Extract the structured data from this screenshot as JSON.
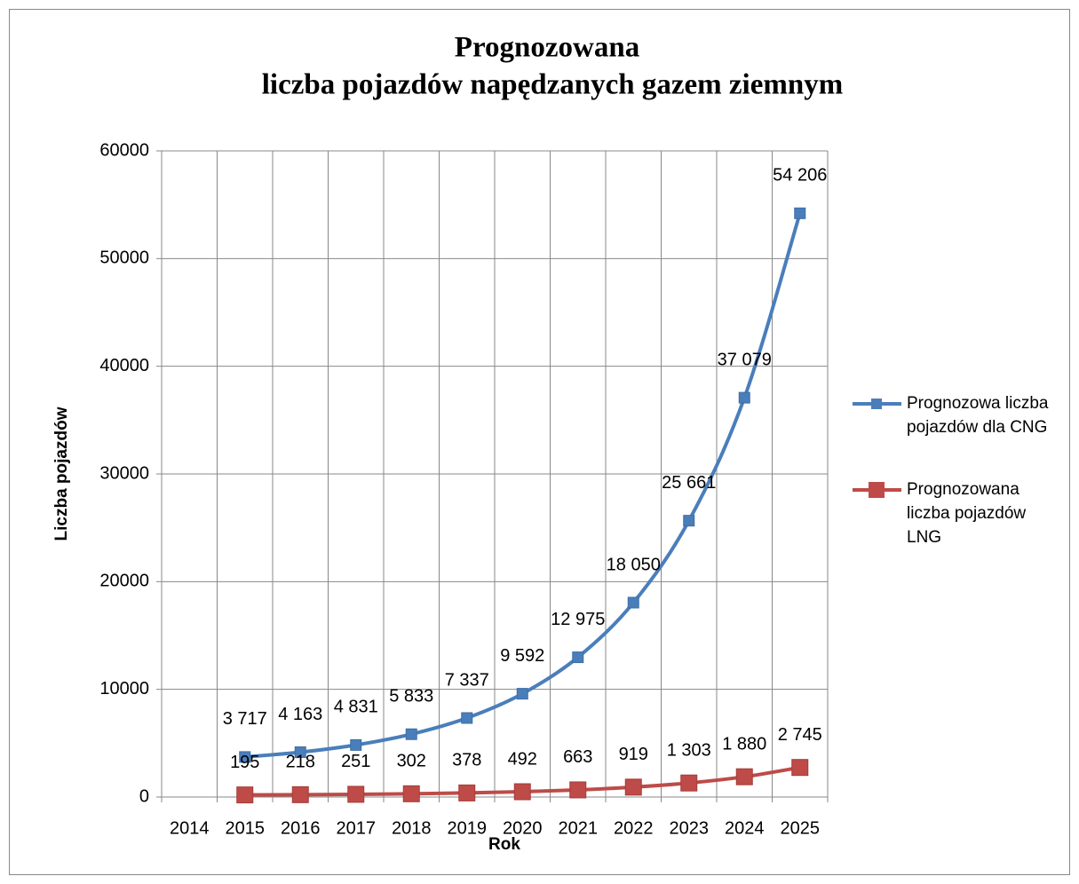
{
  "chart_data": {
    "type": "line",
    "title": [
      "Prognozowana",
      "liczba pojazdów napędzanych gazem ziemnym"
    ],
    "x_label": "Rok",
    "y_label": "Liczba pojazdów",
    "categories": [
      "2014",
      "2015",
      "2016",
      "2017",
      "2018",
      "2019",
      "2020",
      "2021",
      "2022",
      "2023",
      "2024",
      "2025"
    ],
    "series": [
      {
        "name": "Prognozowa liczba pojazdów dla CNG",
        "color": "#4a7ebb",
        "values": [
          null,
          3717,
          4163,
          4831,
          5833,
          7337,
          9592,
          12975,
          18050,
          25661,
          37079,
          54206
        ],
        "value_labels": [
          null,
          "3 717",
          "4 163",
          "4 831",
          "5 833",
          "7 337",
          "9 592",
          "12 975",
          "18 050",
          "25 661",
          "37 079",
          "54 206"
        ]
      },
      {
        "name": "Prognozowana liczba pojazdów LNG",
        "color": "#be4b48",
        "values": [
          null,
          195,
          218,
          251,
          302,
          378,
          492,
          663,
          919,
          1303,
          1880,
          2745
        ],
        "value_labels": [
          null,
          "195",
          "218",
          "251",
          "302",
          "378",
          "492",
          "663",
          "919",
          "1 303",
          "1 880",
          "2 745"
        ]
      }
    ],
    "ylim": [
      0,
      60000
    ],
    "yticks": [
      0,
      10000,
      20000,
      30000,
      40000,
      50000,
      60000
    ],
    "grid": true,
    "legend": "right"
  }
}
